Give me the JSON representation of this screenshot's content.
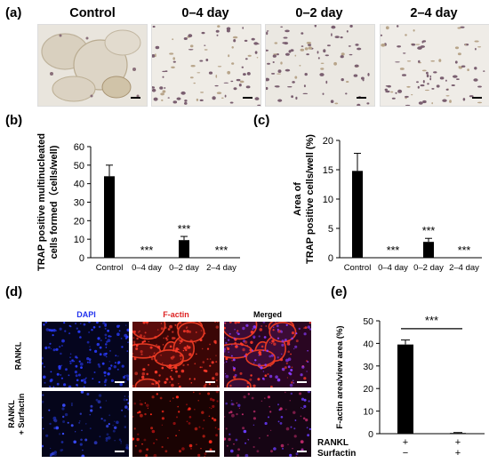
{
  "panel_labels": {
    "a": "(a)",
    "b": "(b)",
    "c": "(c)",
    "d": "(d)",
    "e": "(e)"
  },
  "panel_a": {
    "titles": [
      "Control",
      "0–4 day",
      "0–2 day",
      "2–4 day"
    ]
  },
  "panel_d": {
    "channel_titles": [
      "DAPI",
      "F-actin",
      "Merged"
    ],
    "channel_colors": [
      "#2233ee",
      "#dd2222",
      "#000000"
    ],
    "row_labels": [
      [
        "RANKL"
      ],
      [
        "RANKL",
        "+ Surfactin"
      ]
    ]
  },
  "chart_data": [
    {
      "type": "bar",
      "categories": [
        "Control",
        "0–4 day",
        "0–2 day",
        "2–4 day"
      ],
      "values": [
        44,
        0,
        9.5,
        0
      ],
      "errors": [
        6,
        0,
        2,
        0
      ],
      "significance": [
        "",
        "***",
        "***",
        "***"
      ],
      "ylabel": "TRAP positive multinucleated cells formed（cells/well)",
      "ylabel_lines": [
        "TRAP positive multinucleated",
        "cells formed（cells/well)"
      ],
      "ylim": [
        0,
        60
      ],
      "yticks": [
        0,
        10,
        20,
        30,
        40,
        50,
        60
      ],
      "bar_color": "#000000"
    },
    {
      "type": "bar",
      "categories": [
        "Control",
        "0–4 day",
        "0–2 day",
        "2–4 day"
      ],
      "values": [
        14.8,
        0,
        2.7,
        0
      ],
      "errors": [
        3,
        0,
        0.6,
        0
      ],
      "significance": [
        "",
        "***",
        "***",
        "***"
      ],
      "ylabel": "Area of TRAP positive cells/well (%)",
      "ylabel_lines": [
        "Area of",
        "TRAP positive cells/well (%)"
      ],
      "ylim": [
        0,
        20
      ],
      "yticks": [
        0,
        5,
        10,
        15,
        20
      ],
      "bar_color": "#000000"
    },
    {
      "type": "bar",
      "categories": [
        "RANKL+ Surfactin−",
        "RANKL+ Surfactin+"
      ],
      "values": [
        39.5,
        0.3
      ],
      "errors": [
        2,
        0.2
      ],
      "significance_bracket": "***",
      "ylabel": "F-actin area/view area (%)",
      "ylim": [
        0,
        50
      ],
      "yticks": [
        0,
        10,
        20,
        30,
        40,
        50
      ],
      "row_headers": [
        "RANKL",
        "Surfactin"
      ],
      "rankl_signs": [
        "+",
        "+"
      ],
      "surfactin_signs": [
        "−",
        "+"
      ],
      "bar_color": "#000000"
    }
  ]
}
